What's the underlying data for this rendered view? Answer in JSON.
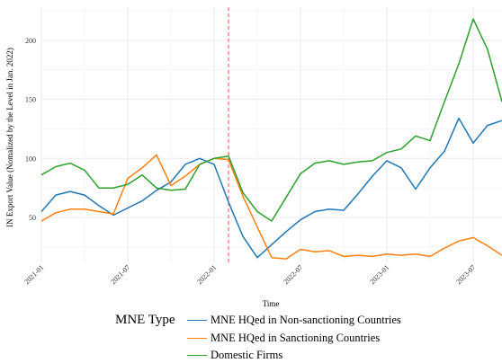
{
  "chart_data": {
    "type": "line",
    "title": "",
    "xlabel": "Time",
    "ylabel": "IN Export Value (Nomalized by the Level in Jan. 2022)",
    "x": [
      "2021-01",
      "2021-02",
      "2021-03",
      "2021-04",
      "2021-05",
      "2021-06",
      "2021-07",
      "2021-08",
      "2021-09",
      "2021-10",
      "2021-11",
      "2021-12",
      "2022-01",
      "2022-02",
      "2022-03",
      "2022-04",
      "2022-05",
      "2022-06",
      "2022-07",
      "2022-08",
      "2022-09",
      "2022-10",
      "2022-11",
      "2022-12",
      "2023-01",
      "2023-02",
      "2023-03",
      "2023-04",
      "2023-05",
      "2023-06",
      "2023-07",
      "2023-08",
      "2023-09"
    ],
    "x_tick_labels": [
      "2021-01",
      "2021-07",
      "2022-01",
      "2022-07",
      "2023-01",
      "2023-07"
    ],
    "y_ticks": [
      50,
      100,
      150,
      200
    ],
    "ylim": [
      12,
      228
    ],
    "grid": true,
    "vertical_reference_line": {
      "x": "2022-02",
      "style": "dashed",
      "color": "#e05555"
    },
    "legend": {
      "title": "MNE Type",
      "placement": "bottom"
    },
    "series": [
      {
        "name": "MNE HQed in Non-sanctioning Countries",
        "color": "#1f77b4",
        "values": [
          55,
          69,
          72,
          69,
          60,
          52,
          58,
          64,
          73,
          80,
          95,
          100,
          95,
          63,
          34,
          16,
          27,
          38,
          48,
          55,
          57,
          56,
          70,
          85,
          98,
          92,
          74,
          92,
          106,
          134,
          113,
          128,
          132
        ]
      },
      {
        "name": "MNE HQed in Sanctioning Countries",
        "color": "#ff7f0e",
        "values": [
          47,
          54,
          57,
          57,
          55,
          53,
          83,
          92,
          103,
          77,
          85,
          95,
          100,
          99,
          68,
          42,
          16,
          15,
          23,
          21,
          22,
          17,
          18,
          17,
          19,
          18,
          19,
          17,
          24,
          30,
          33,
          26,
          18
        ]
      },
      {
        "name": "Domestic Firms",
        "color": "#2ca02c",
        "values": [
          86,
          93,
          96,
          90,
          75,
          75,
          78,
          86,
          75,
          73,
          74,
          95,
          100,
          102,
          71,
          55,
          47,
          67,
          87,
          96,
          98,
          95,
          97,
          98,
          105,
          108,
          119,
          115,
          148,
          180,
          218,
          192,
          148
        ]
      }
    ]
  }
}
